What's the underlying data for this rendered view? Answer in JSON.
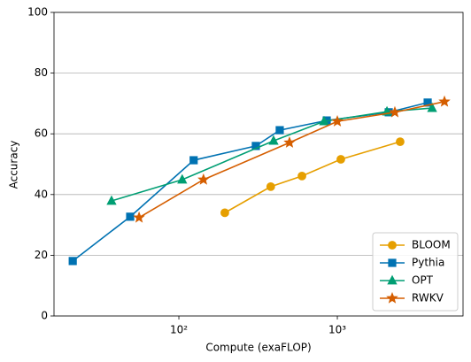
{
  "chart_data": {
    "type": "line",
    "x_label": "Compute (exaFLOP)",
    "y_label": "Accuracy",
    "x_scale": "log",
    "xlim": [
      16.3,
      6210
    ],
    "ylim": [
      0,
      100
    ],
    "xticks": [
      {
        "value": 100,
        "label": "10²"
      },
      {
        "value": 1000,
        "label": "10³"
      }
    ],
    "yticks": [
      0,
      20,
      40,
      60,
      80,
      100
    ],
    "grid": "y",
    "legend": "lower right",
    "series": [
      {
        "name": "BLOOM",
        "color": "#E69F00",
        "marker": "circle",
        "x": [
          195,
          380,
          598,
          1052,
          2490
        ],
        "values": [
          34.0,
          42.6,
          46.1,
          51.6,
          57.4
        ]
      },
      {
        "name": "Pythia",
        "color": "#0072B2",
        "marker": "square",
        "x": [
          21.4,
          49.3,
          124,
          306,
          433,
          857,
          2110,
          3715
        ],
        "values": [
          18.1,
          32.7,
          51.3,
          56.0,
          61.2,
          64.4,
          67.1,
          70.3
        ]
      },
      {
        "name": "OPT",
        "color": "#009E73",
        "marker": "triangle",
        "x": [
          37.6,
          105,
          396,
          824,
          2056,
          3963
        ],
        "values": [
          37.9,
          44.9,
          57.7,
          64.1,
          67.3,
          68.5
        ]
      },
      {
        "name": "RWKV",
        "color": "#D55E00",
        "marker": "star",
        "x": [
          56.1,
          143,
          499,
          1000,
          2306,
          4742
        ],
        "values": [
          32.4,
          44.9,
          57.1,
          64.1,
          67.1,
          70.6
        ]
      }
    ]
  }
}
